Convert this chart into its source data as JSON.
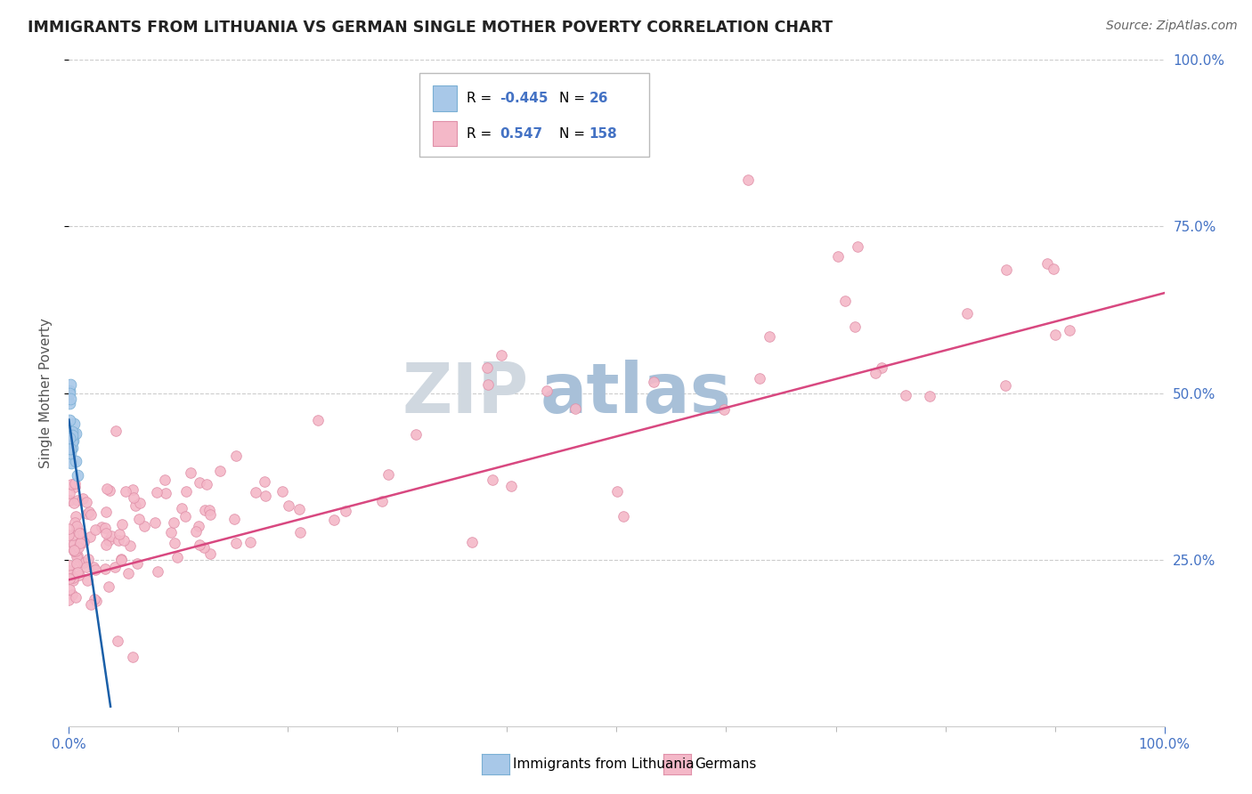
{
  "title": "IMMIGRANTS FROM LITHUANIA VS GERMAN SINGLE MOTHER POVERTY CORRELATION CHART",
  "source": "Source: ZipAtlas.com",
  "ylabel": "Single Mother Poverty",
  "legend_blue_r": "-0.445",
  "legend_blue_n": "26",
  "legend_pink_r": "0.547",
  "legend_pink_n": "158",
  "legend_blue_label": "Immigrants from Lithuania",
  "legend_pink_label": "Germans",
  "blue_color": "#a8c8e8",
  "blue_edge": "#7aafd4",
  "pink_color": "#f4b8c8",
  "pink_edge": "#e090a8",
  "blue_line_color": "#1a5fa8",
  "pink_line_color": "#d84880",
  "watermark_zip": "ZIP",
  "watermark_atlas": "atlas",
  "watermark_zip_color": "#d0d8e0",
  "watermark_atlas_color": "#a8c0d8",
  "right_yticks": [
    "100.0%",
    "75.0%",
    "50.0%",
    "25.0%"
  ],
  "right_ytick_vals": [
    1.0,
    0.75,
    0.5,
    0.25
  ],
  "blue_line_x0": 0.0,
  "blue_line_x1": 0.038,
  "blue_line_y0": 0.46,
  "blue_line_y1": 0.03,
  "pink_line_x0": 0.0,
  "pink_line_x1": 1.0,
  "pink_line_y0": 0.22,
  "pink_line_y1": 0.65,
  "xlim": [
    0.0,
    1.0
  ],
  "ylim": [
    0.0,
    1.0
  ],
  "grid_color": "#cccccc",
  "background_color": "#ffffff",
  "title_color": "#222222",
  "axis_label_color": "#555555",
  "right_tick_color": "#4472c4",
  "bottom_tick_color": "#4472c4",
  "legend_border_color": "#bbbbbb",
  "legend_r_color": "#4472c4",
  "legend_n_color": "#4472c4"
}
